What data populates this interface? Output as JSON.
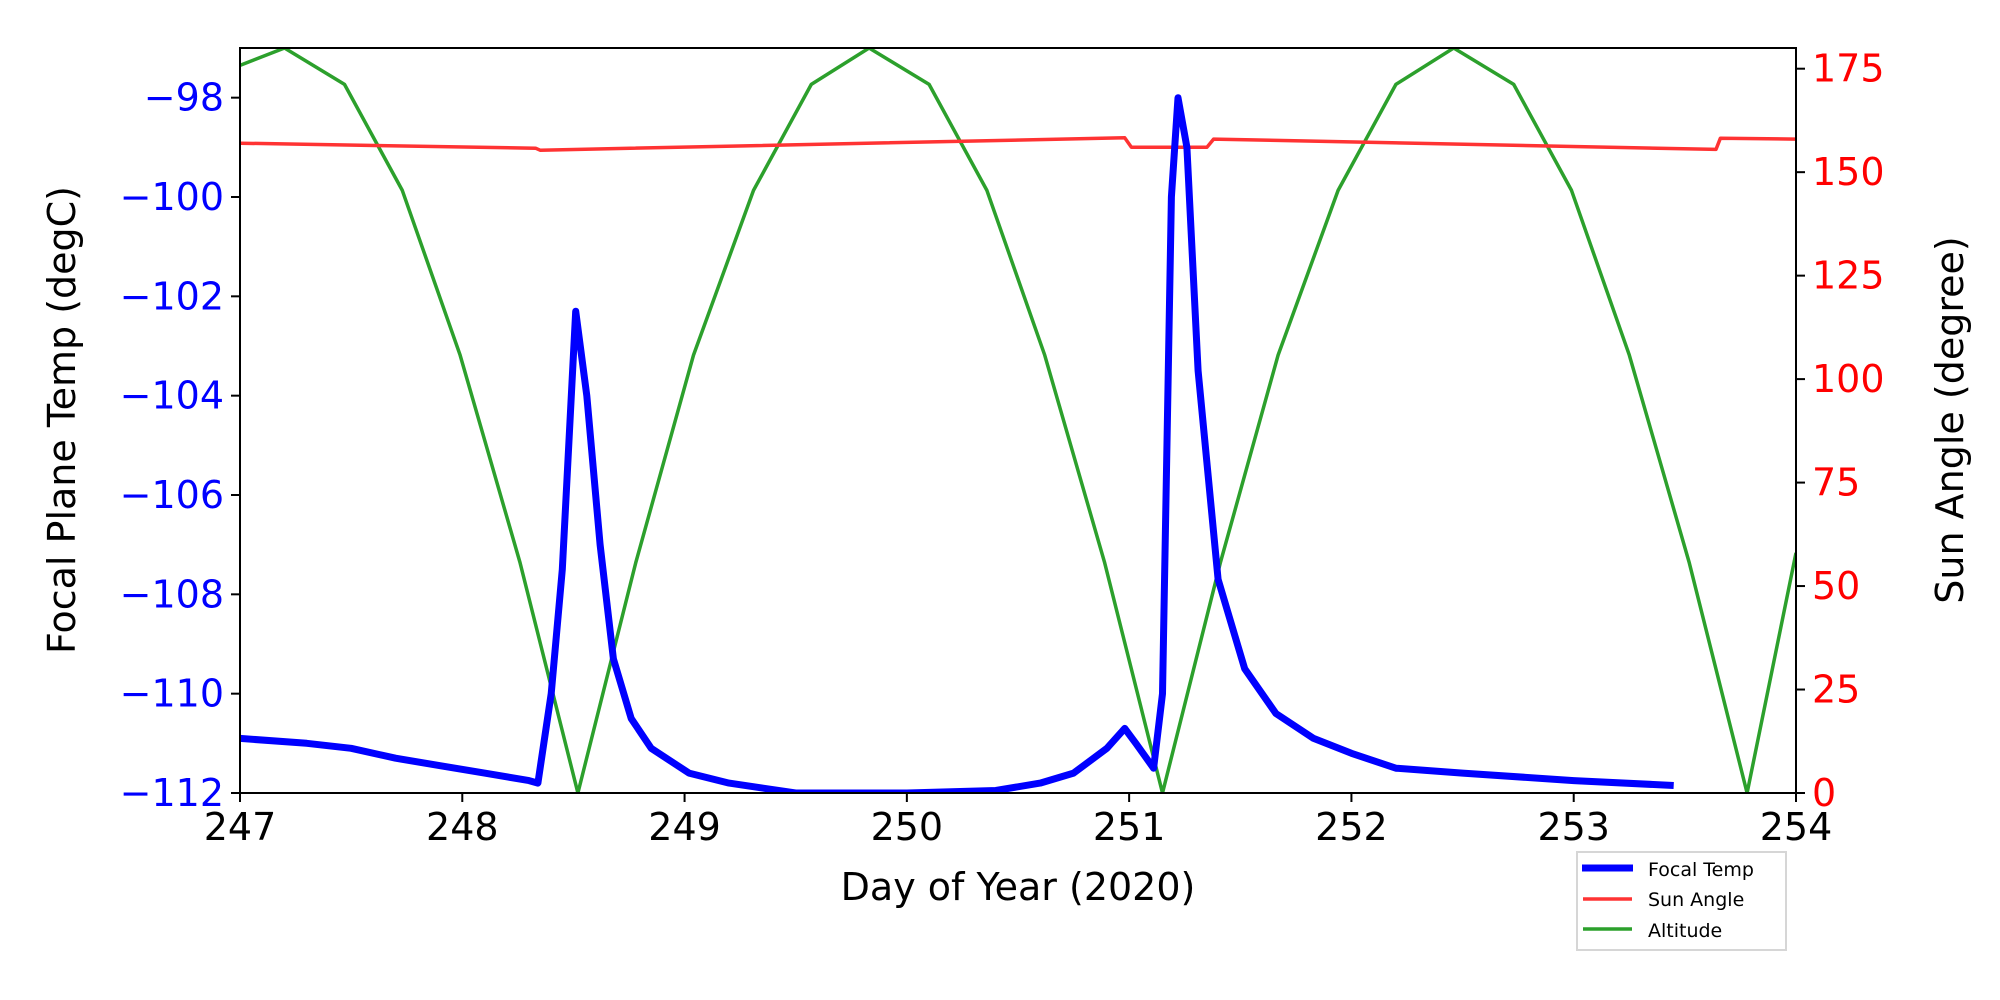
{
  "chart_data": {
    "type": "line",
    "xlabel": "Day of Year (2020)",
    "ylabel_left": "Focal Plane Temp (degC)",
    "ylabel_right": "Sun Angle (degree)",
    "xlim": [
      247,
      254
    ],
    "ylim_left": [
      -112,
      -97
    ],
    "ylim_right": [
      0,
      180
    ],
    "x_ticks": [
      "247",
      "248",
      "249",
      "250",
      "251",
      "252",
      "253",
      "254"
    ],
    "y_left_ticks": [
      "−112",
      "−110",
      "−108",
      "−106",
      "−104",
      "−102",
      "−100",
      "−98"
    ],
    "y_right_ticks": [
      "0",
      "25",
      "50",
      "75",
      "100",
      "125",
      "150",
      "175"
    ],
    "grid": false,
    "legend_placement": "below-right",
    "colors": {
      "left_axis": "#0000ff",
      "right_axis": "#ff0000"
    },
    "series": [
      {
        "name": "Focal Temp",
        "axis": "left",
        "color": "#0000ff",
        "points": [
          [
            247.0,
            -110.9
          ],
          [
            247.3,
            -111.0
          ],
          [
            247.5,
            -111.1
          ],
          [
            247.7,
            -111.3
          ],
          [
            247.9,
            -111.45
          ],
          [
            248.1,
            -111.6
          ],
          [
            248.3,
            -111.75
          ],
          [
            248.34,
            -111.8
          ],
          [
            248.4,
            -110.0
          ],
          [
            248.45,
            -107.5
          ],
          [
            248.51,
            -102.3
          ],
          [
            248.56,
            -104.0
          ],
          [
            248.62,
            -107.0
          ],
          [
            248.68,
            -109.3
          ],
          [
            248.76,
            -110.5
          ],
          [
            248.85,
            -111.1
          ],
          [
            249.02,
            -111.6
          ],
          [
            249.2,
            -111.8
          ],
          [
            249.5,
            -112.0
          ],
          [
            250.0,
            -112.0
          ],
          [
            250.4,
            -111.95
          ],
          [
            250.6,
            -111.8
          ],
          [
            250.75,
            -111.6
          ],
          [
            250.9,
            -111.1
          ],
          [
            250.98,
            -110.7
          ],
          [
            251.03,
            -111.0
          ],
          [
            251.11,
            -111.5
          ],
          [
            251.15,
            -110.0
          ],
          [
            251.19,
            -100.0
          ],
          [
            251.22,
            -98.0
          ],
          [
            251.26,
            -99.0
          ],
          [
            251.31,
            -103.5
          ],
          [
            251.4,
            -107.7
          ],
          [
            251.52,
            -109.5
          ],
          [
            251.66,
            -110.4
          ],
          [
            251.83,
            -110.9
          ],
          [
            252.0,
            -111.2
          ],
          [
            252.2,
            -111.5
          ],
          [
            252.5,
            -111.6
          ],
          [
            253.0,
            -111.75
          ],
          [
            253.45,
            -111.85
          ]
        ]
      },
      {
        "name": "Sun Angle",
        "axis": "right",
        "color": "#ff3333",
        "points": [
          [
            247.0,
            157.0
          ],
          [
            248.33,
            155.8
          ],
          [
            248.35,
            155.3
          ],
          [
            250.98,
            158.3
          ],
          [
            251.01,
            156.0
          ],
          [
            251.35,
            156.0
          ],
          [
            251.38,
            158.0
          ],
          [
            253.64,
            155.5
          ],
          [
            253.66,
            158.2
          ],
          [
            254.0,
            158.0
          ]
        ]
      },
      {
        "name": "Altitude",
        "axis": "right",
        "color": "#2ca02c",
        "points": [
          [
            247.0,
            175.8
          ],
          [
            247.2,
            180
          ],
          [
            247.47,
            171.2
          ],
          [
            247.73,
            145.6
          ],
          [
            247.99,
            105.8
          ],
          [
            248.26,
            55.6
          ],
          [
            248.52,
            0
          ],
          [
            248.78,
            55.6
          ],
          [
            249.04,
            105.8
          ],
          [
            249.31,
            145.6
          ],
          [
            249.57,
            171.2
          ],
          [
            249.83,
            180
          ],
          [
            250.1,
            171.2
          ],
          [
            250.36,
            145.6
          ],
          [
            250.62,
            105.8
          ],
          [
            250.89,
            55.6
          ],
          [
            251.15,
            0
          ],
          [
            251.41,
            55.6
          ],
          [
            251.67,
            105.8
          ],
          [
            251.94,
            145.6
          ],
          [
            252.2,
            171.2
          ],
          [
            252.46,
            180
          ],
          [
            252.73,
            171.2
          ],
          [
            252.99,
            145.6
          ],
          [
            253.25,
            105.8
          ],
          [
            253.52,
            55.6
          ],
          [
            253.78,
            0
          ],
          [
            254.0,
            58
          ]
        ]
      }
    ]
  }
}
